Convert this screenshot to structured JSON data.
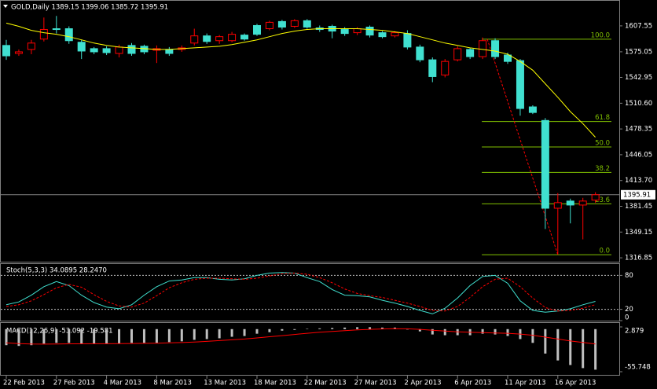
{
  "chart_data": [
    {
      "type": "candlestick",
      "title": "GOLD,Daily  1389.15 1399.06 1385.72 1395.91",
      "categories": [
        "22 Feb 2013",
        null,
        null,
        null,
        "27 Feb 2013",
        null,
        null,
        null,
        "4 Mar 2013",
        null,
        null,
        null,
        "8 Mar 2013",
        null,
        null,
        null,
        "13 Mar 2013",
        null,
        null,
        null,
        "18 Mar 2013",
        null,
        null,
        null,
        "22 Mar 2013",
        null,
        null,
        null,
        "27 Mar 2013",
        null,
        null,
        null,
        "2 Apr 2013",
        null,
        null,
        null,
        "6 Apr 2013",
        null,
        null,
        null,
        "11 Apr 2013",
        null,
        null,
        null,
        "16 Apr 2013",
        null,
        null,
        null
      ],
      "open": [
        1583,
        1573,
        1578,
        1591,
        1604,
        1604,
        1587,
        1579,
        1579,
        1573,
        1583,
        1582,
        1577,
        1578,
        1578,
        1586,
        1595,
        1589,
        1589,
        1596,
        1608,
        1604,
        1613,
        1607,
        1614,
        1605,
        1607,
        1603,
        1599,
        1606,
        1599,
        1595,
        1598,
        1581,
        1565,
        1546,
        1565,
        1578,
        1569,
        1589,
        1571,
        1564,
        1506,
        1489,
        1379,
        1388,
        1383,
        1389.15
      ],
      "high": [
        1590,
        1578,
        1590,
        1618,
        1620,
        1607,
        1590,
        1581,
        1582,
        1584,
        1586,
        1584,
        1583,
        1581,
        1583,
        1604,
        1598,
        1596,
        1600,
        1598,
        1610,
        1614,
        1615,
        1616,
        1616,
        1608,
        1609,
        1606,
        1606,
        1608,
        1601,
        1601,
        1602,
        1584,
        1568,
        1566,
        1582,
        1580,
        1593,
        1592,
        1574,
        1566,
        1508,
        1492,
        1398,
        1391,
        1392,
        1399.06
      ],
      "low": [
        1565,
        1570,
        1572,
        1588,
        1598,
        1585,
        1566,
        1572,
        1571,
        1568,
        1570,
        1572,
        1561,
        1570,
        1575,
        1583,
        1585,
        1585,
        1587,
        1589,
        1595,
        1602,
        1603,
        1605,
        1604,
        1600,
        1592,
        1595,
        1596,
        1593,
        1592,
        1593,
        1578,
        1562,
        1537,
        1543,
        1563,
        1566,
        1566,
        1566,
        1560,
        1495,
        1497,
        1353,
        1321,
        1360,
        1340,
        1385.72
      ],
      "close": [
        1570,
        1575,
        1586,
        1603,
        1603,
        1589,
        1576,
        1575,
        1574,
        1581,
        1573,
        1575,
        1579,
        1573,
        1580,
        1595,
        1588,
        1594,
        1597,
        1591,
        1597,
        1612,
        1606,
        1614,
        1606,
        1603,
        1601,
        1598,
        1604,
        1596,
        1594,
        1599,
        1581,
        1565,
        1544,
        1563,
        1579,
        1569,
        1589,
        1569,
        1563,
        1504,
        1499,
        1379,
        1386,
        1383,
        1388,
        1395.91
      ],
      "up_color": "#ff0000",
      "down_color": "#40e0d0",
      "ma": {
        "color": "#ffff00",
        "values": [
          1611,
          1607,
          1602,
          1599,
          1597,
          1594,
          1590,
          1586,
          1583,
          1581,
          1580,
          1579,
          1578,
          1578,
          1579,
          1580,
          1581,
          1582,
          1584,
          1587,
          1590,
          1594,
          1598,
          1601,
          1603,
          1604,
          1604,
          1604,
          1604,
          1603,
          1602,
          1600,
          1598,
          1594,
          1590,
          1586,
          1583,
          1580,
          1578,
          1576,
          1572,
          1563,
          1552,
          1535,
          1518,
          1500,
          1485,
          1468
        ]
      },
      "fib": {
        "color": "#7fbf00",
        "levels": [
          {
            "value": 1590.8,
            "label": "100.0"
          },
          {
            "value": 1487.7,
            "label": "61.8"
          },
          {
            "value": 1455.8,
            "label": "50.0"
          },
          {
            "value": 1423.9,
            "label": "38.2"
          },
          {
            "value": 1384.5,
            "label": "23.6"
          },
          {
            "value": 1320.8,
            "label": "0.0"
          }
        ]
      },
      "last_price": 1395.91,
      "ylim": [
        1312,
        1638
      ],
      "yticks": [
        1607.55,
        1575.05,
        1542.95,
        {
          "value": 1510.6,
          "label": "1510.60"
        },
        1478.35,
        1446.05,
        {
          "value": 1413.7,
          "label": "1413.70"
        },
        1381.45,
        1349.15,
        1316.85
      ]
    },
    {
      "type": "stochastic",
      "title": "Stoch(5,3,3) 34.0895 28.2470",
      "series": [
        {
          "color": "#40e0d0",
          "dash": false,
          "values": [
            28,
            33,
            45,
            60,
            69,
            62,
            45,
            32,
            24,
            21,
            28,
            45,
            60,
            70,
            72,
            76,
            76,
            73,
            72,
            74,
            80,
            84,
            85,
            84,
            76,
            69,
            55,
            45,
            44,
            42,
            36,
            31,
            25,
            18,
            12,
            22,
            40,
            62,
            78,
            80,
            66,
            35,
            18,
            15,
            17,
            21,
            28,
            34.0895
          ]
        },
        {
          "color": "#ff0000",
          "dash": true,
          "values": [
            25,
            28,
            35,
            46,
            58,
            64,
            59,
            46,
            34,
            26,
            24,
            31,
            44,
            58,
            67,
            73,
            75,
            75,
            74,
            73,
            75,
            79,
            83,
            84,
            82,
            76,
            67,
            56,
            48,
            44,
            41,
            36,
            31,
            25,
            18,
            17,
            25,
            41,
            60,
            73,
            75,
            60,
            40,
            23,
            17,
            18,
            22,
            28.247
          ]
        }
      ],
      "levels": [
        20,
        80
      ],
      "ylim": [
        0,
        100
      ],
      "yticks": [
        0,
        20,
        80
      ]
    },
    {
      "type": "macd",
      "title": "MACD(12,26,9) -53.092 -19.581",
      "histogram": {
        "color": "#c0c0c0",
        "values": [
          -21,
          -22,
          -21,
          -19,
          -18,
          -18,
          -19,
          -19,
          -19,
          -19,
          -18,
          -18,
          -18,
          -17,
          -16,
          -14,
          -13,
          -12,
          -10,
          -9,
          -6,
          -4,
          -2,
          -1,
          0.5,
          1,
          1.5,
          2,
          2.5,
          2.5,
          2,
          2,
          0,
          -3,
          -7,
          -8,
          -8,
          -8,
          -6,
          -7,
          -9,
          -13,
          -18,
          -32,
          -41,
          -47,
          -51,
          -53.092
        ]
      },
      "signal": {
        "color": "#ff0000",
        "values": [
          -18,
          -19,
          -19.5,
          -19.6,
          -19.5,
          -19.2,
          -19.2,
          -19.1,
          -19.1,
          -19,
          -18.8,
          -18.6,
          -18.4,
          -18,
          -17.6,
          -17,
          -16,
          -15,
          -14,
          -13,
          -11.5,
          -10,
          -8.5,
          -7,
          -5.5,
          -4,
          -3,
          -2,
          -1,
          -0.3,
          0.2,
          0.5,
          0.4,
          -0.3,
          -1.5,
          -2.5,
          -3.5,
          -4,
          -4.5,
          -5,
          -5.5,
          -6.5,
          -8,
          -10.5,
          -13,
          -15.5,
          -17.5,
          -19.581
        ]
      },
      "ylim": [
        -55.748,
        2.879
      ],
      "yticks": [
        2.879,
        -55.748
      ]
    }
  ]
}
